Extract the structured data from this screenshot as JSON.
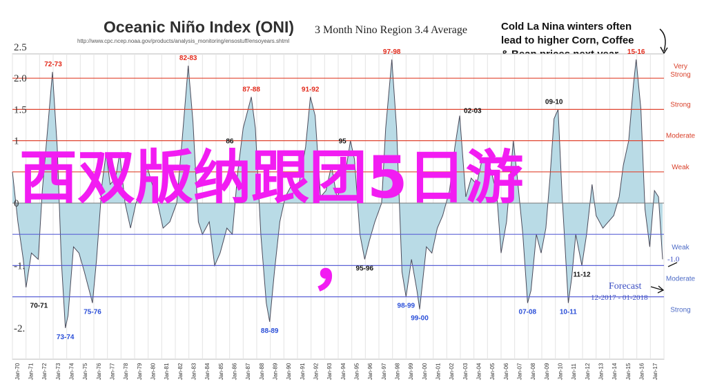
{
  "header": {
    "title": "Oceanic Niño Index (ONI)",
    "subtitle": "3 Month Nino Region 3.4 Average",
    "source_url": "http://www.cpc.ncep.noaa.gov/products/analysis_monitoring/ensostuff/ensoyears.shtml"
  },
  "callout": {
    "lines": [
      "Cold La Nina winters often",
      "lead to higher Corn, Coffee",
      "& Bean prices next year"
    ]
  },
  "overlay": {
    "text": "西双版纳跟团5日游",
    "comma": "，",
    "color": "#f21cf2"
  },
  "forecast": {
    "label": "Forecast",
    "range": "12-2017 - 01-2018"
  },
  "chart_data": {
    "type": "area",
    "title": "Oceanic Niño Index (ONI)",
    "subtitle": "3 Month Nino Region 3.4 Average",
    "xlabel": "",
    "ylabel": "",
    "ylim": [
      -2.5,
      2.5
    ],
    "grid": true,
    "x_tick_labels": [
      "Jan-70",
      "Jan-71",
      "Jan-72",
      "Jan-73",
      "Jan-74",
      "Jan-75",
      "Jan-76",
      "Jan-77",
      "Jan-78",
      "Jan-79",
      "Jan-80",
      "Jan-81",
      "Jan-82",
      "Jan-83",
      "Jan-84",
      "Jan-85",
      "Jan-86",
      "Jan-87",
      "Jan-88",
      "Jan-89",
      "Jan-90",
      "Jan-91",
      "Jan-92",
      "Jan-93",
      "Jan-94",
      "Jan-95",
      "Jan-96",
      "Jan-97",
      "Jan-98",
      "Jan-99",
      "Jan-00",
      "Jan-01",
      "Jan-02",
      "Jan-03",
      "Jan-04",
      "Jan-05",
      "Jan-06",
      "Jan-07",
      "Jan-08",
      "Jan-09",
      "Jan-10",
      "Jan-11",
      "Jan-12",
      "Jan-13",
      "Jan-14",
      "Jan-15",
      "Jan-16",
      "Jan-17"
    ],
    "y_tick_labels": [
      {
        "value": 2.5,
        "label": "2.5"
      },
      {
        "value": 2.0,
        "label": "2.0"
      },
      {
        "value": 1.5,
        "label": "1.5"
      },
      {
        "value": 1.0,
        "label": "1"
      },
      {
        "value": 0.0,
        "label": "0"
      },
      {
        "value": -1.0,
        "label": "-1."
      },
      {
        "value": -2.0,
        "label": "-2."
      }
    ],
    "thresholds": [
      {
        "value": 2.0,
        "label": "Very Strong",
        "kind": "warm"
      },
      {
        "value": 1.5,
        "label": "Strong",
        "kind": "warm"
      },
      {
        "value": 1.0,
        "label": "Moderate",
        "kind": "warm"
      },
      {
        "value": 0.5,
        "label": "Weak",
        "kind": "warm"
      },
      {
        "value": -0.5,
        "label": "Weak",
        "kind": "cold"
      },
      {
        "value": -1.0,
        "label": "Moderate",
        "kind": "cold"
      },
      {
        "value": -1.5,
        "label": "Strong",
        "kind": "cold"
      }
    ],
    "series": [
      {
        "points": [
          [
            1970.0,
            0.5
          ],
          [
            1970.4,
            -0.3
          ],
          [
            1970.8,
            -0.9
          ],
          [
            1971.0,
            -1.35
          ],
          [
            1971.4,
            -0.8
          ],
          [
            1971.9,
            -0.9
          ],
          [
            1972.2,
            0.2
          ],
          [
            1972.6,
            1.2
          ],
          [
            1972.95,
            2.1
          ],
          [
            1973.3,
            0.9
          ],
          [
            1973.6,
            -0.9
          ],
          [
            1973.9,
            -2.0
          ],
          [
            1974.1,
            -1.8
          ],
          [
            1974.5,
            -0.7
          ],
          [
            1974.9,
            -0.8
          ],
          [
            1975.3,
            -1.1
          ],
          [
            1975.9,
            -1.6
          ],
          [
            1976.2,
            -0.9
          ],
          [
            1976.6,
            0.3
          ],
          [
            1976.9,
            0.8
          ],
          [
            1977.2,
            0.3
          ],
          [
            1977.6,
            0.4
          ],
          [
            1977.9,
            0.8
          ],
          [
            1978.3,
            0.0
          ],
          [
            1978.7,
            -0.4
          ],
          [
            1979.1,
            0.0
          ],
          [
            1979.5,
            0.2
          ],
          [
            1979.9,
            0.6
          ],
          [
            1980.3,
            0.3
          ],
          [
            1980.7,
            0.0
          ],
          [
            1981.1,
            -0.4
          ],
          [
            1981.6,
            -0.3
          ],
          [
            1982.1,
            0.0
          ],
          [
            1982.5,
            1.0
          ],
          [
            1982.95,
            2.2
          ],
          [
            1983.3,
            1.3
          ],
          [
            1983.7,
            -0.3
          ],
          [
            1984.0,
            -0.5
          ],
          [
            1984.5,
            -0.3
          ],
          [
            1984.9,
            -1.0
          ],
          [
            1985.3,
            -0.8
          ],
          [
            1985.8,
            -0.4
          ],
          [
            1986.2,
            -0.5
          ],
          [
            1986.6,
            0.5
          ],
          [
            1987.0,
            1.2
          ],
          [
            1987.6,
            1.7
          ],
          [
            1987.9,
            1.2
          ],
          [
            1988.3,
            -0.5
          ],
          [
            1988.7,
            -1.6
          ],
          [
            1988.95,
            -1.9
          ],
          [
            1989.3,
            -1.1
          ],
          [
            1989.7,
            -0.3
          ],
          [
            1990.1,
            0.1
          ],
          [
            1990.6,
            0.3
          ],
          [
            1991.1,
            0.3
          ],
          [
            1991.6,
            0.9
          ],
          [
            1991.95,
            1.7
          ],
          [
            1992.3,
            1.4
          ],
          [
            1992.7,
            0.1
          ],
          [
            1993.1,
            0.2
          ],
          [
            1993.5,
            0.6
          ],
          [
            1993.9,
            0.1
          ],
          [
            1994.4,
            0.3
          ],
          [
            1994.9,
            1.0
          ],
          [
            1995.2,
            0.7
          ],
          [
            1995.6,
            -0.5
          ],
          [
            1995.95,
            -0.9
          ],
          [
            1996.3,
            -0.6
          ],
          [
            1996.7,
            -0.3
          ],
          [
            1997.2,
            0.0
          ],
          [
            1997.5,
            1.2
          ],
          [
            1997.95,
            2.3
          ],
          [
            1998.3,
            1.2
          ],
          [
            1998.7,
            -1.1
          ],
          [
            1999.0,
            -1.5
          ],
          [
            1999.4,
            -0.9
          ],
          [
            1999.8,
            -1.4
          ],
          [
            2000.0,
            -1.7
          ],
          [
            2000.5,
            -0.7
          ],
          [
            2000.9,
            -0.8
          ],
          [
            2001.3,
            -0.4
          ],
          [
            2001.7,
            -0.2
          ],
          [
            2002.2,
            0.2
          ],
          [
            2002.6,
            0.9
          ],
          [
            2002.95,
            1.4
          ],
          [
            2003.4,
            0.1
          ],
          [
            2003.8,
            0.4
          ],
          [
            2004.2,
            0.3
          ],
          [
            2004.6,
            0.7
          ],
          [
            2004.95,
            0.7
          ],
          [
            2005.3,
            0.5
          ],
          [
            2005.7,
            0.1
          ],
          [
            2006.0,
            -0.8
          ],
          [
            2006.4,
            -0.3
          ],
          [
            2006.9,
            1.0
          ],
          [
            2007.2,
            0.4
          ],
          [
            2007.6,
            -0.5
          ],
          [
            2007.95,
            -1.6
          ],
          [
            2008.2,
            -1.4
          ],
          [
            2008.6,
            -0.5
          ],
          [
            2008.95,
            -0.8
          ],
          [
            2009.3,
            -0.4
          ],
          [
            2009.6,
            0.4
          ],
          [
            2009.9,
            1.35
          ],
          [
            2010.2,
            1.5
          ],
          [
            2010.5,
            0.1
          ],
          [
            2010.95,
            -1.6
          ],
          [
            2011.2,
            -1.2
          ],
          [
            2011.5,
            -0.5
          ],
          [
            2011.95,
            -1.0
          ],
          [
            2012.3,
            -0.5
          ],
          [
            2012.7,
            0.3
          ],
          [
            2013.0,
            -0.2
          ],
          [
            2013.5,
            -0.4
          ],
          [
            2013.9,
            -0.3
          ],
          [
            2014.3,
            -0.2
          ],
          [
            2014.7,
            0.1
          ],
          [
            2015.0,
            0.6
          ],
          [
            2015.4,
            1.0
          ],
          [
            2015.75,
            1.9
          ],
          [
            2015.95,
            2.3
          ],
          [
            2016.3,
            1.5
          ],
          [
            2016.6,
            -0.1
          ],
          [
            2016.95,
            -0.7
          ],
          [
            2017.3,
            0.2
          ],
          [
            2017.6,
            0.1
          ],
          [
            2017.9,
            -0.9
          ]
        ]
      }
    ],
    "peak_labels": [
      {
        "x": 1973.0,
        "y": 2.1,
        "text": "72-73",
        "kind": "warm",
        "pos": "above"
      },
      {
        "x": 1982.95,
        "y": 2.2,
        "text": "82-83",
        "kind": "warm",
        "pos": "above"
      },
      {
        "x": 1987.6,
        "y": 1.7,
        "text": "87-88",
        "kind": "warm",
        "pos": "above"
      },
      {
        "x": 1991.95,
        "y": 1.7,
        "text": "91-92",
        "kind": "warm",
        "pos": "above"
      },
      {
        "x": 1997.95,
        "y": 2.3,
        "text": "97-98",
        "kind": "warm",
        "pos": "above"
      },
      {
        "x": 2009.9,
        "y": 1.5,
        "text": "09-10",
        "kind": "black",
        "pos": "above"
      },
      {
        "x": 2002.95,
        "y": 1.4,
        "text": "02-03",
        "kind": "black",
        "pos": "above-right"
      },
      {
        "x": 1986.6,
        "y": 1.0,
        "text": "86",
        "kind": "black",
        "pos": "left"
      },
      {
        "x": 1994.9,
        "y": 1.0,
        "text": "95",
        "kind": "black",
        "pos": "left"
      },
      {
        "x": 2015.95,
        "y": 2.3,
        "text": "15-16",
        "kind": "warm",
        "pos": "above"
      },
      {
        "x": 1971.0,
        "y": -1.5,
        "text": "70-71",
        "kind": "black",
        "pos": "below-right"
      },
      {
        "x": 1973.9,
        "y": -2.0,
        "text": "73-74",
        "kind": "cold",
        "pos": "below"
      },
      {
        "x": 1975.9,
        "y": -1.6,
        "text": "75-76",
        "kind": "cold",
        "pos": "below"
      },
      {
        "x": 1988.95,
        "y": -1.9,
        "text": "88-89",
        "kind": "cold",
        "pos": "below"
      },
      {
        "x": 1995.95,
        "y": -0.9,
        "text": "95-96",
        "kind": "black",
        "pos": "below"
      },
      {
        "x": 1999.0,
        "y": -1.5,
        "text": "98-99",
        "kind": "cold",
        "pos": "below"
      },
      {
        "x": 2000.0,
        "y": -1.7,
        "text": "99-00",
        "kind": "cold",
        "pos": "below"
      },
      {
        "x": 2007.95,
        "y": -1.6,
        "text": "07-08",
        "kind": "cold",
        "pos": "below"
      },
      {
        "x": 2010.95,
        "y": -1.6,
        "text": "10-11",
        "kind": "cold",
        "pos": "below"
      },
      {
        "x": 2011.95,
        "y": -1.0,
        "text": "11-12",
        "kind": "black",
        "pos": "below"
      }
    ],
    "forecast": {
      "label": "Forecast",
      "range": "12-2017 - 01-2018",
      "tick_label": "-1.0"
    }
  }
}
